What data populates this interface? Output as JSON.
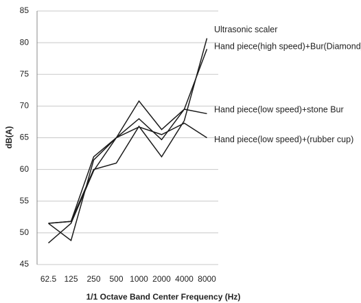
{
  "chart_data": {
    "type": "line",
    "xlabel": "1/1 Octave Band Center Frequency (Hz)",
    "ylabel": "dB(A)",
    "categories": [
      "62.5",
      "125",
      "250",
      "500",
      "1000",
      "2000",
      "4000",
      "8000"
    ],
    "series": [
      {
        "name": "Ultrasonic scaler",
        "color": "#1a1a1a",
        "values": [
          51.5,
          51.8,
          60,
          61,
          66.8,
          62,
          67.7,
          80.7
        ]
      },
      {
        "name": "Hand piece(high speed)+Bur(Diamond)",
        "color": "#1a1a1a",
        "values": [
          48.4,
          51.5,
          59.8,
          65,
          68,
          64.7,
          69.5,
          79
        ]
      },
      {
        "name": "Hand piece(low speed)+stone Bur",
        "color": "#1a1a1a",
        "values": [
          51.5,
          51.8,
          62,
          65,
          70.8,
          66.3,
          69.5,
          68.8
        ]
      },
      {
        "name": "Hand piece(low speed)+(rubber cup)",
        "color": "#1a1a1a",
        "values": [
          51.5,
          48.8,
          61.5,
          65,
          66.7,
          65.5,
          67.3,
          65
        ]
      }
    ],
    "ylim": [
      45,
      85
    ],
    "yticks": [
      45,
      50,
      55,
      60,
      65,
      70,
      75,
      80,
      85
    ],
    "grid": true
  }
}
